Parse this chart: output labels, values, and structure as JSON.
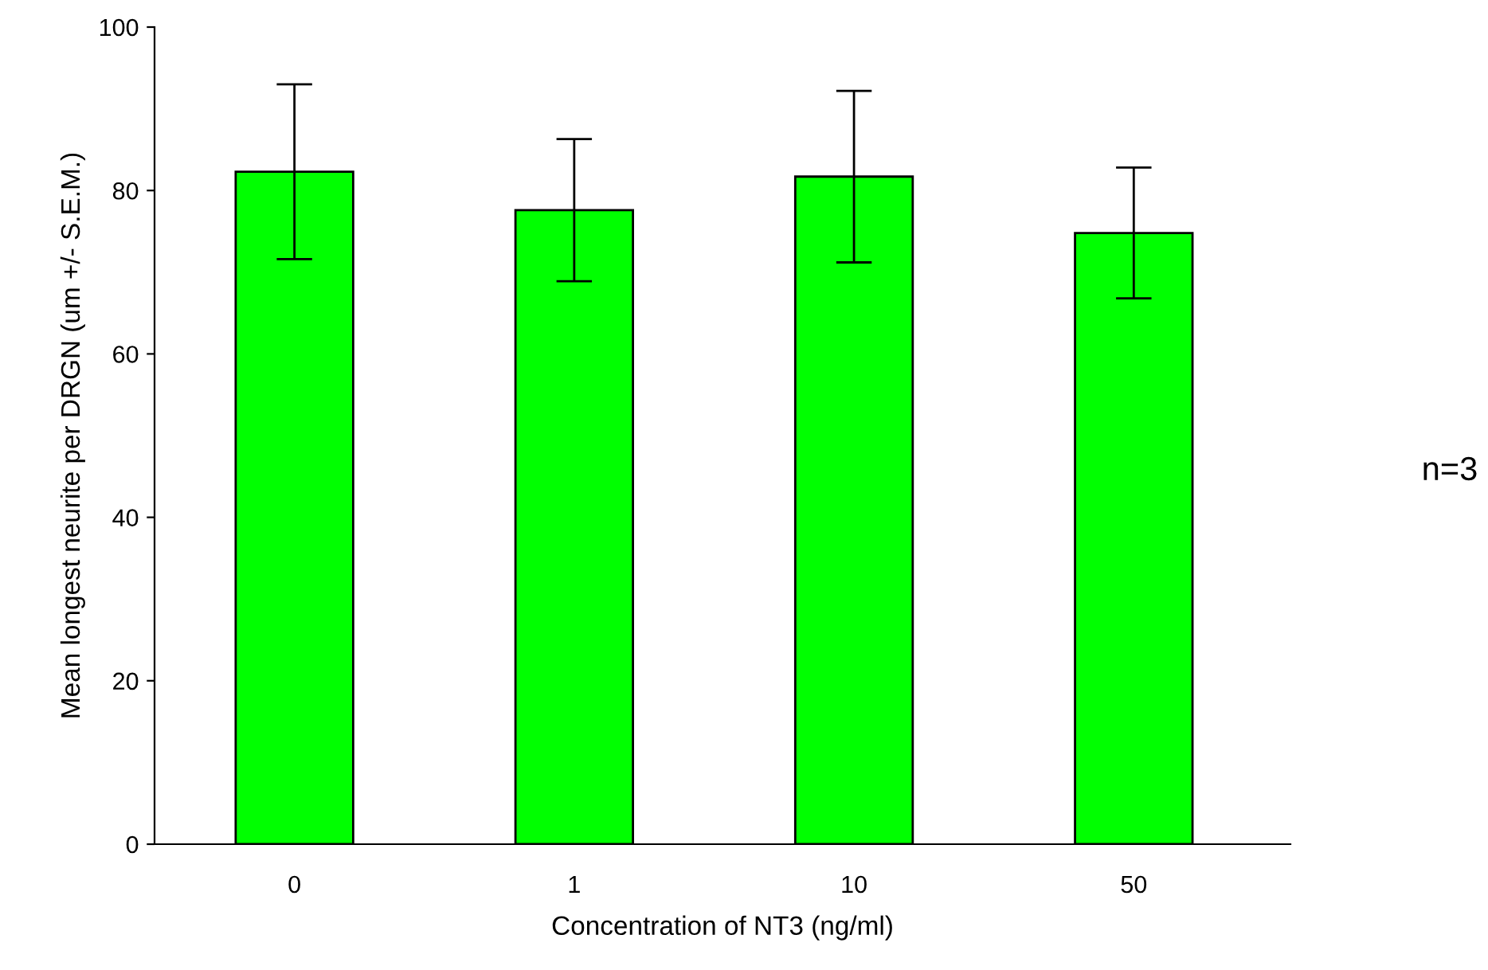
{
  "chart_data": {
    "type": "bar",
    "xlabel": "Concentration of NT3 (ng/ml)",
    "ylabel": "Mean longest neurite per DRGN (um +/- S.E.M.)",
    "categories": [
      "0",
      "1",
      "10",
      "50"
    ],
    "values": [
      82.3,
      77.6,
      81.7,
      74.8
    ],
    "errors": [
      10.7,
      8.7,
      10.5,
      8.0
    ],
    "color": "#00ff00",
    "ylim": [
      0,
      100
    ],
    "yticks": [
      0,
      20,
      40,
      60,
      80,
      100
    ],
    "grid": false,
    "annotations": [
      "n=3"
    ]
  }
}
